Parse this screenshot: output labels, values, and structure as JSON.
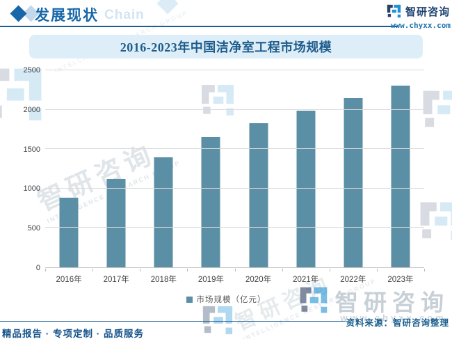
{
  "header": {
    "section_title": "发展现状",
    "section_watermark": "Chain",
    "brand_name": "智研咨询",
    "brand_url": "www.chyxx.com"
  },
  "chart_data": {
    "type": "bar",
    "title": "2016-2023年中国洁净室工程市场规模",
    "categories": [
      "2016年",
      "2017年",
      "2018年",
      "2019年",
      "2020年",
      "2021年",
      "2022年",
      "2023年"
    ],
    "series": [
      {
        "name": "市场规模（亿元）",
        "values": [
          880,
          1120,
          1400,
          1650,
          1830,
          1990,
          2150,
          2310
        ]
      }
    ],
    "xlabel": "",
    "ylabel": "",
    "ylim": [
      0,
      2500
    ],
    "ytick_step": 500,
    "grid": "horizontal",
    "legend_position": "bottom",
    "bar_color": "#5b8fa5"
  },
  "footer": {
    "source": "资料来源：智研咨询整理",
    "slogan": "精品报告 · 专项定制 · 品质服务"
  },
  "watermarks": {
    "brand_cn": "智研咨询",
    "brand_en": "INTELLIGENCE RESEARCH GROUP",
    "brand_url": "www.chyxx.com"
  },
  "colors": {
    "accent_blue": "#1767a9",
    "dark_line_blue": "#1b5e94",
    "bar": "#5b8fa5",
    "title_band_bg": "#ddeef8",
    "title_text": "#1f5c8b",
    "gridline": "#dadada",
    "axis_text": "#404040",
    "source_text": "#1a5f8e",
    "logo_navy": "#2c3f66",
    "logo_blue": "#2191d3"
  }
}
